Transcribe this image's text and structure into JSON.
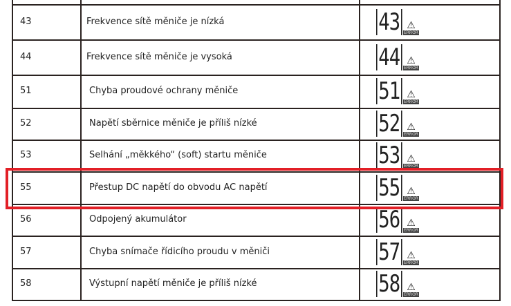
{
  "rows": [
    {
      "code": "43",
      "description": "Frekvence sítě měniče je nízká",
      "display": "43"
    },
    {
      "code": "44",
      "description": "Frekvence sítě měniče je vysoká",
      "display": "44"
    },
    {
      "code": "51",
      "description": "Chyba proudové ochrany měniče",
      "display": "51"
    },
    {
      "code": "52",
      "description": "Napětí sběrnice měniče je příliš nízké",
      "display": "52"
    },
    {
      "code": "53",
      "description": "Selhání „měkkého“ (soft) startu měniče",
      "display": "53"
    },
    {
      "code": "55",
      "description": "Přestup DC napětí do obvodu AC napětí",
      "display": "55"
    },
    {
      "code": "56",
      "description": "Odpojený akumulátor",
      "display": "56"
    },
    {
      "code": "57",
      "description": "Chyba snímače řídicího proudu v měniči",
      "display": "57"
    },
    {
      "code": "58",
      "description": "Výstupní napětí měniče je příliš nízké",
      "display": "58"
    }
  ],
  "error_label": "ERROR",
  "warning_icon": "warning-triangle-icon",
  "highlight": {
    "row_code": "55",
    "color": "#e21f26"
  }
}
